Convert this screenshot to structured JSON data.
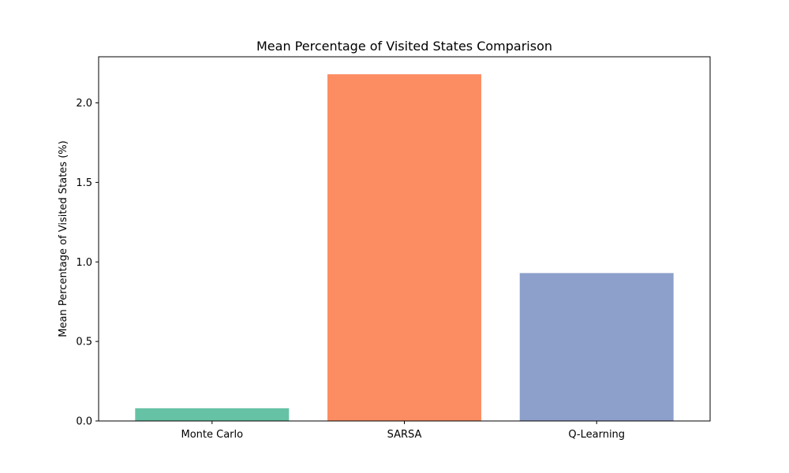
{
  "chart_data": {
    "type": "bar",
    "title": "Mean Percentage of Visited States Comparison",
    "xlabel": "",
    "ylabel": "Mean Percentage of Visited States (%)",
    "categories": [
      "Monte Carlo",
      "SARSA",
      "Q-Learning"
    ],
    "values": [
      0.08,
      2.18,
      0.93
    ],
    "colors": [
      "#66c2a5",
      "#fc8d62",
      "#8da0cb"
    ],
    "ylim": [
      0,
      2.29
    ],
    "yticks": [
      0.0,
      0.5,
      1.0,
      1.5,
      2.0
    ],
    "ytick_labels": [
      "0.0",
      "0.5",
      "1.0",
      "1.5",
      "2.0"
    ],
    "grid": false,
    "legend": "none"
  }
}
